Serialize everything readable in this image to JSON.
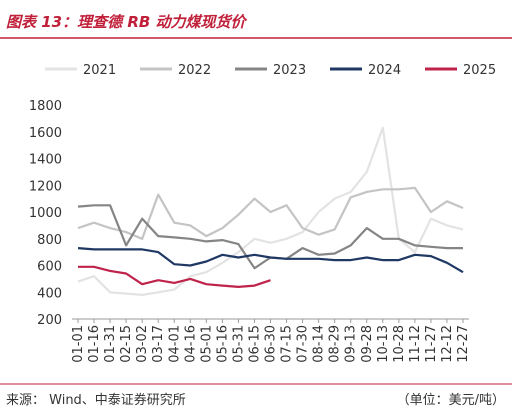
{
  "chart_data": {
    "type": "line",
    "title": "图表 13：理查德 RB 动力煤现货价",
    "source": "来源：  Wind、中泰证券研究所",
    "unit": "（单位：美元/吨）",
    "categories": [
      "01-01",
      "01-16",
      "01-31",
      "02-15",
      "03-02",
      "03-17",
      "04-01",
      "04-16",
      "05-01",
      "05-16",
      "05-31",
      "06-15",
      "06-30",
      "07-15",
      "07-30",
      "08-14",
      "08-29",
      "09-13",
      "09-28",
      "10-13",
      "10-28",
      "11-12",
      "11-27",
      "12-12",
      "12-27"
    ],
    "series": [
      {
        "name": "2021",
        "color": "#e3e3e3",
        "values": [
          480,
          520,
          400,
          390,
          380,
          400,
          420,
          520,
          550,
          620,
          700,
          800,
          770,
          800,
          850,
          1000,
          1100,
          1150,
          1300,
          1630,
          800,
          700,
          950,
          900,
          870
        ]
      },
      {
        "name": "2022",
        "color": "#c4c4c4",
        "values": [
          880,
          920,
          880,
          850,
          800,
          1130,
          920,
          900,
          820,
          880,
          980,
          1100,
          1000,
          1050,
          880,
          830,
          870,
          1110,
          1150,
          1170,
          1170,
          1180,
          1000,
          1080,
          1030
        ]
      },
      {
        "name": "2023",
        "color": "#858585",
        "values": [
          1040,
          1050,
          1050,
          750,
          950,
          820,
          810,
          800,
          780,
          790,
          760,
          580,
          660,
          650,
          730,
          680,
          690,
          750,
          880,
          800,
          800,
          750,
          740,
          730,
          730
        ]
      },
      {
        "name": "2024",
        "color": "#1f3864",
        "values": [
          730,
          720,
          720,
          720,
          720,
          700,
          610,
          600,
          630,
          680,
          660,
          680,
          660,
          650,
          650,
          650,
          640,
          640,
          660,
          640,
          640,
          680,
          670,
          620,
          550
        ]
      },
      {
        "name": "2025",
        "color": "#c0234a",
        "values": [
          590,
          590,
          560,
          540,
          460,
          490,
          470,
          500,
          460,
          450,
          440,
          450,
          490,
          null,
          null,
          null,
          null,
          null,
          null,
          null,
          null,
          null,
          null,
          null,
          null
        ]
      }
    ],
    "ylim": [
      200,
      1800
    ],
    "yticks": [
      200,
      400,
      600,
      800,
      1000,
      1200,
      1400,
      1600,
      1800
    ],
    "legend": "top"
  }
}
